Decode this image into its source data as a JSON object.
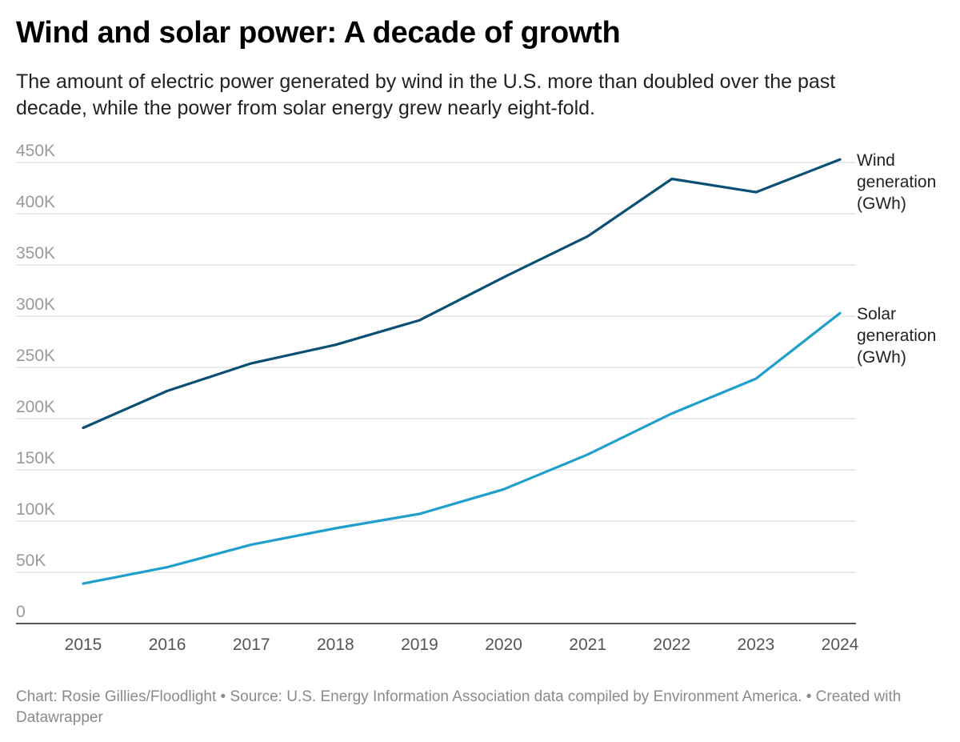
{
  "header": {
    "title": "Wind and solar power: A decade of growth",
    "subtitle": "The amount of electric power generated by wind in the U.S. more than doubled over the past decade, while the power from solar energy grew nearly eight-fold."
  },
  "footer": {
    "credit": "Chart: Rosie Gillies/Floodlight • Source: U.S. Energy Information Association data compiled by Environment America. • Created with Datawrapper"
  },
  "colors": {
    "wind": "#0c4f74",
    "solar": "#1f9fcb",
    "grid": "#dddddd",
    "axis": "#222222",
    "tick_label": "#9a9a9a",
    "year_label": "#555555"
  },
  "chart_data": {
    "type": "line",
    "title": "Wind and solar power: A decade of growth",
    "xlabel": "",
    "ylabel": "",
    "x": [
      2015,
      2016,
      2017,
      2018,
      2019,
      2020,
      2021,
      2022,
      2023,
      2024
    ],
    "x_tick_labels": [
      "2015",
      "2016",
      "2017",
      "2018",
      "2019",
      "2020",
      "2021",
      "2022",
      "2023",
      "2024"
    ],
    "ylim": [
      0,
      450000
    ],
    "y_ticks": [
      0,
      50000,
      100000,
      150000,
      200000,
      250000,
      300000,
      350000,
      400000,
      450000
    ],
    "y_tick_labels": [
      "0",
      "50K",
      "100K",
      "150K",
      "200K",
      "250K",
      "300K",
      "350K",
      "400K",
      "450K"
    ],
    "grid": true,
    "legend": "direct labels at right end of lines",
    "series": [
      {
        "name": "Wind generation (GWh)",
        "label_lines": [
          "Wind",
          "generation",
          "(GWh)"
        ],
        "color": "#0c4f74",
        "values": [
          191000,
          227000,
          254000,
          272000,
          296000,
          338000,
          378000,
          434000,
          421000,
          453000
        ]
      },
      {
        "name": "Solar generation (GWh)",
        "label_lines": [
          "Solar",
          "generation",
          "(GWh)"
        ],
        "color": "#1f9fcb",
        "values": [
          39000,
          55000,
          77000,
          93000,
          107000,
          131000,
          165000,
          205000,
          239000,
          303000
        ]
      }
    ]
  }
}
